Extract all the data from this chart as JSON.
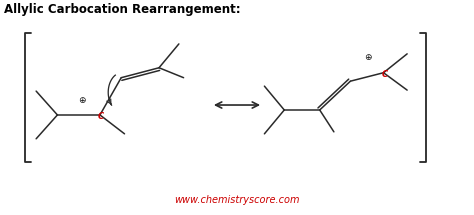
{
  "title": "Allylic Carbocation Rearrangement:",
  "title_fontsize": 8.5,
  "title_color": "#000000",
  "website": "www.chemistryscore.com",
  "website_color": "#cc0000",
  "website_fontsize": 7,
  "bg_color": "#ffffff",
  "line_color": "#2a2a2a",
  "line_lw": 1.1,
  "dbo": 0.055,
  "bracket_color": "#2a2a2a",
  "C_color": "#cc0000",
  "plus_color": "#111111",
  "figsize": [
    4.74,
    2.15
  ],
  "dpi": 100,
  "xlim": [
    0,
    10
  ],
  "ylim": [
    0,
    4.3
  ]
}
